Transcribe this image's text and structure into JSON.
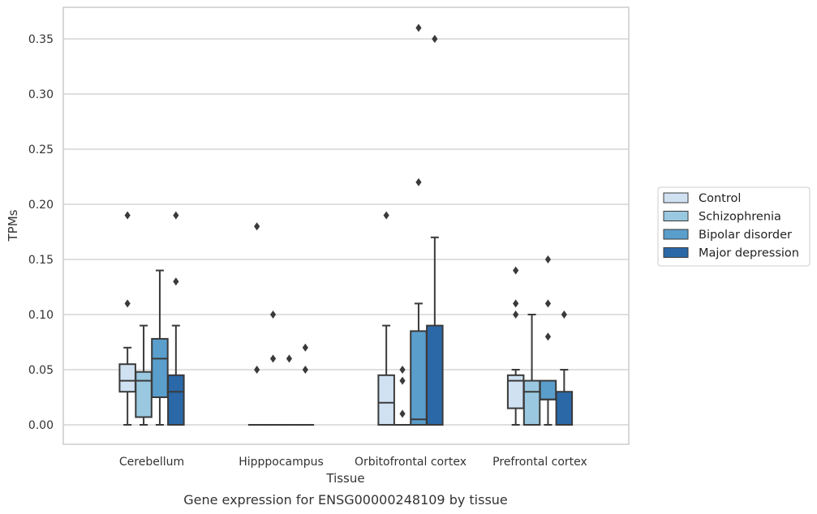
{
  "chart_data": {
    "type": "box",
    "caption": "Gene expression for ENSG00000248109 by tissue",
    "xlabel": "Tissue",
    "ylabel": "TPMs",
    "ylim": [
      -0.018,
      0.378
    ],
    "yticks": [
      "0.00",
      "0.05",
      "0.10",
      "0.15",
      "0.20",
      "0.25",
      "0.30",
      "0.35"
    ],
    "ytick_values": [
      0,
      0.05,
      0.1,
      0.15,
      0.2,
      0.25,
      0.3,
      0.35
    ],
    "grid": "horizontal",
    "legend_position": "right",
    "categories": [
      "Cerebellum",
      "Hipppocampus",
      "Orbitofrontal cortex",
      "Prefrontal cortex"
    ],
    "series": [
      {
        "name": "Control",
        "color": "#d0e1f2",
        "boxes": [
          {
            "min": 0,
            "q1": 0.03,
            "median": 0.04,
            "q3": 0.055,
            "max": 0.07,
            "outliers": [
              0.11,
              0.19
            ]
          },
          {
            "min": 0,
            "q1": 0,
            "median": 0,
            "q3": 0,
            "max": 0,
            "outliers": [
              0.05,
              0.18
            ]
          },
          {
            "min": 0,
            "q1": 0,
            "median": 0.02,
            "q3": 0.045,
            "max": 0.09,
            "outliers": [
              0.19
            ]
          },
          {
            "min": 0,
            "q1": 0.015,
            "median": 0.04,
            "q3": 0.045,
            "max": 0.05,
            "outliers": [
              0.1,
              0.11,
              0.14
            ]
          }
        ]
      },
      {
        "name": "Schizophrenia",
        "color": "#9ac8e0",
        "boxes": [
          {
            "min": 0,
            "q1": 0.007,
            "median": 0.04,
            "q3": 0.048,
            "max": 0.09,
            "outliers": []
          },
          {
            "min": 0,
            "q1": 0,
            "median": 0,
            "q3": 0,
            "max": 0,
            "outliers": [
              0.06,
              0.1
            ]
          },
          {
            "min": 0,
            "q1": 0,
            "median": 0,
            "q3": 0,
            "max": 0,
            "outliers": [
              0.01,
              0.04,
              0.05
            ]
          },
          {
            "min": 0,
            "q1": 0,
            "median": 0.03,
            "q3": 0.04,
            "max": 0.1,
            "outliers": []
          }
        ]
      },
      {
        "name": "Bipolar disorder",
        "color": "#5a9ecc",
        "boxes": [
          {
            "min": 0,
            "q1": 0.025,
            "median": 0.06,
            "q3": 0.078,
            "max": 0.14,
            "outliers": []
          },
          {
            "min": 0,
            "q1": 0,
            "median": 0,
            "q3": 0,
            "max": 0,
            "outliers": [
              0.06
            ]
          },
          {
            "min": 0,
            "q1": 0,
            "median": 0.005,
            "q3": 0.085,
            "max": 0.11,
            "outliers": [
              0.22,
              0.36
            ]
          },
          {
            "min": 0,
            "q1": 0.023,
            "median": 0.023,
            "q3": 0.04,
            "max": 0.04,
            "outliers": [
              0.08,
              0.11,
              0.15
            ]
          }
        ]
      },
      {
        "name": "Major depression",
        "color": "#2a68a8",
        "boxes": [
          {
            "min": 0,
            "q1": 0,
            "median": 0.03,
            "q3": 0.045,
            "max": 0.09,
            "outliers": [
              0.13,
              0.19
            ]
          },
          {
            "min": 0,
            "q1": 0,
            "median": 0,
            "q3": 0,
            "max": 0,
            "outliers": [
              0.05,
              0.07
            ]
          },
          {
            "min": 0,
            "q1": 0,
            "median": 0,
            "q3": 0.09,
            "max": 0.17,
            "outliers": [
              0.35
            ]
          },
          {
            "min": 0,
            "q1": 0,
            "median": 0,
            "q3": 0.03,
            "max": 0.05,
            "outliers": [
              0.1
            ]
          }
        ]
      }
    ]
  }
}
